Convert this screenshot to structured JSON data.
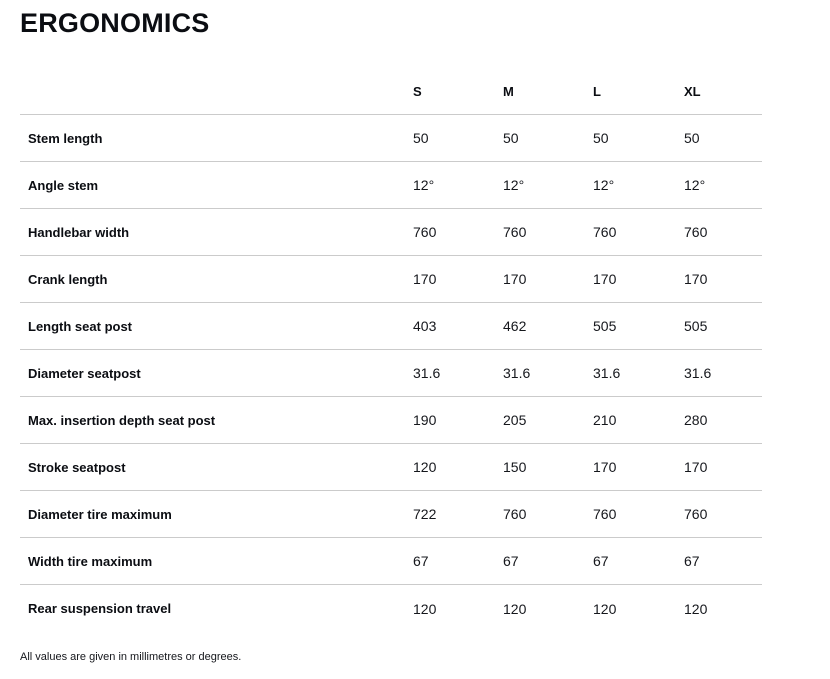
{
  "page": {
    "title": "ERGONOMICS",
    "footnote": "All values are given in millimetres or degrees."
  },
  "colors": {
    "background": "#ffffff",
    "text": "#0b0d12",
    "divider": "#cbcbcb"
  },
  "table": {
    "columns": [
      "S",
      "M",
      "L",
      "XL"
    ],
    "rows": [
      {
        "label": "Stem length",
        "values": [
          "50",
          "50",
          "50",
          "50"
        ]
      },
      {
        "label": "Angle stem",
        "values": [
          "12°",
          "12°",
          "12°",
          "12°"
        ]
      },
      {
        "label": "Handlebar width",
        "values": [
          "760",
          "760",
          "760",
          "760"
        ]
      },
      {
        "label": "Crank length",
        "values": [
          "170",
          "170",
          "170",
          "170"
        ]
      },
      {
        "label": "Length seat post",
        "values": [
          "403",
          "462",
          "505",
          "505"
        ]
      },
      {
        "label": "Diameter seatpost",
        "values": [
          "31.6",
          "31.6",
          "31.6",
          "31.6"
        ]
      },
      {
        "label": "Max. insertion depth seat post",
        "values": [
          "190",
          "205",
          "210",
          "280"
        ]
      },
      {
        "label": "Stroke seatpost",
        "values": [
          "120",
          "150",
          "170",
          "170"
        ]
      },
      {
        "label": "Diameter tire maximum",
        "values": [
          "722",
          "760",
          "760",
          "760"
        ]
      },
      {
        "label": "Width tire maximum",
        "values": [
          "67",
          "67",
          "67",
          "67"
        ]
      },
      {
        "label": "Rear suspension travel",
        "values": [
          "120",
          "120",
          "120",
          "120"
        ]
      }
    ]
  }
}
